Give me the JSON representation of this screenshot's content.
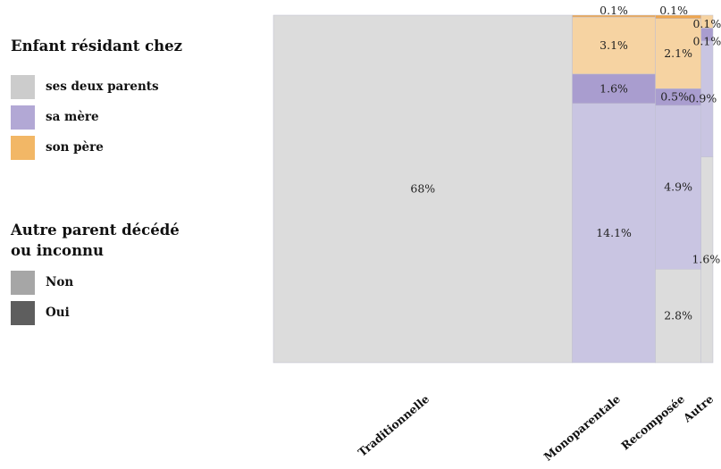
{
  "legend": {
    "title1": "Enfant résidant chez",
    "items1": [
      {
        "label": "ses deux parents",
        "color": "#cccccc"
      },
      {
        "label": "sa mère",
        "color": "#b2a8d5"
      },
      {
        "label": "son père",
        "color": "#f2b766"
      }
    ],
    "title2_line1": "Autre parent décédé",
    "title2_line2": "ou inconnu",
    "items2": [
      {
        "label": "Non",
        "color": "#a6a6a6"
      },
      {
        "label": "Oui",
        "color": "#5e5e5e"
      }
    ]
  },
  "chart_data": {
    "type": "mosaic",
    "title": "",
    "xlabel": "",
    "ylabel": "",
    "categories": [
      "Traditionnelle",
      "Monoparentale",
      "Recomposée",
      "Autre"
    ],
    "column_widths_percent": [
      68,
      18.9,
      10.4,
      2.7
    ],
    "segments_bottom_to_top": {
      "Traditionnelle": [
        {
          "resid": "ses deux parents",
          "deceased": "Non",
          "value": 68,
          "label": "68%"
        }
      ],
      "Monoparentale": [
        {
          "resid": "sa mère",
          "deceased": "Non",
          "value": 14.1,
          "label": "14.1%"
        },
        {
          "resid": "sa mère",
          "deceased": "Oui",
          "value": 1.6,
          "label": "1.6%"
        },
        {
          "resid": "son père",
          "deceased": "Non",
          "value": 3.1,
          "label": "3.1%"
        },
        {
          "resid": "son père",
          "deceased": "Oui",
          "value": 0.1,
          "label": "0.1%"
        }
      ],
      "Recomposée": [
        {
          "resid": "ses deux parents",
          "deceased": "Non",
          "value": 2.8,
          "label": "2.8%"
        },
        {
          "resid": "sa mère",
          "deceased": "Non",
          "value": 4.9,
          "label": "4.9%"
        },
        {
          "resid": "sa mère",
          "deceased": "Oui",
          "value": 0.5,
          "label": "0.5%"
        },
        {
          "resid": "son père",
          "deceased": "Non",
          "value": 2.1,
          "label": "2.1%"
        },
        {
          "resid": "son père",
          "deceased": "Oui",
          "value": 0.1,
          "label": "0.1%"
        }
      ],
      "Autre": [
        {
          "resid": "ses deux parents",
          "deceased": "Non",
          "value": 1.6,
          "label": "1.6%"
        },
        {
          "resid": "sa mère",
          "deceased": "Non",
          "value": 0.9,
          "label": "0.9%"
        },
        {
          "resid": "sa mère",
          "deceased": "Oui",
          "value": 0.1,
          "label": "0.1%"
        },
        {
          "resid": "son père",
          "deceased": "Non",
          "value": 0.1,
          "label": "0.1%"
        }
      ]
    },
    "colors": {
      "ses deux parents|Non": "#dcdcdc",
      "sa mère|Non": "#c9c5e2",
      "sa mère|Oui": "#a99dcf",
      "son père|Non": "#f6d3a2",
      "son père|Oui": "#eea64e"
    },
    "grid": false,
    "legend_position": "left"
  }
}
